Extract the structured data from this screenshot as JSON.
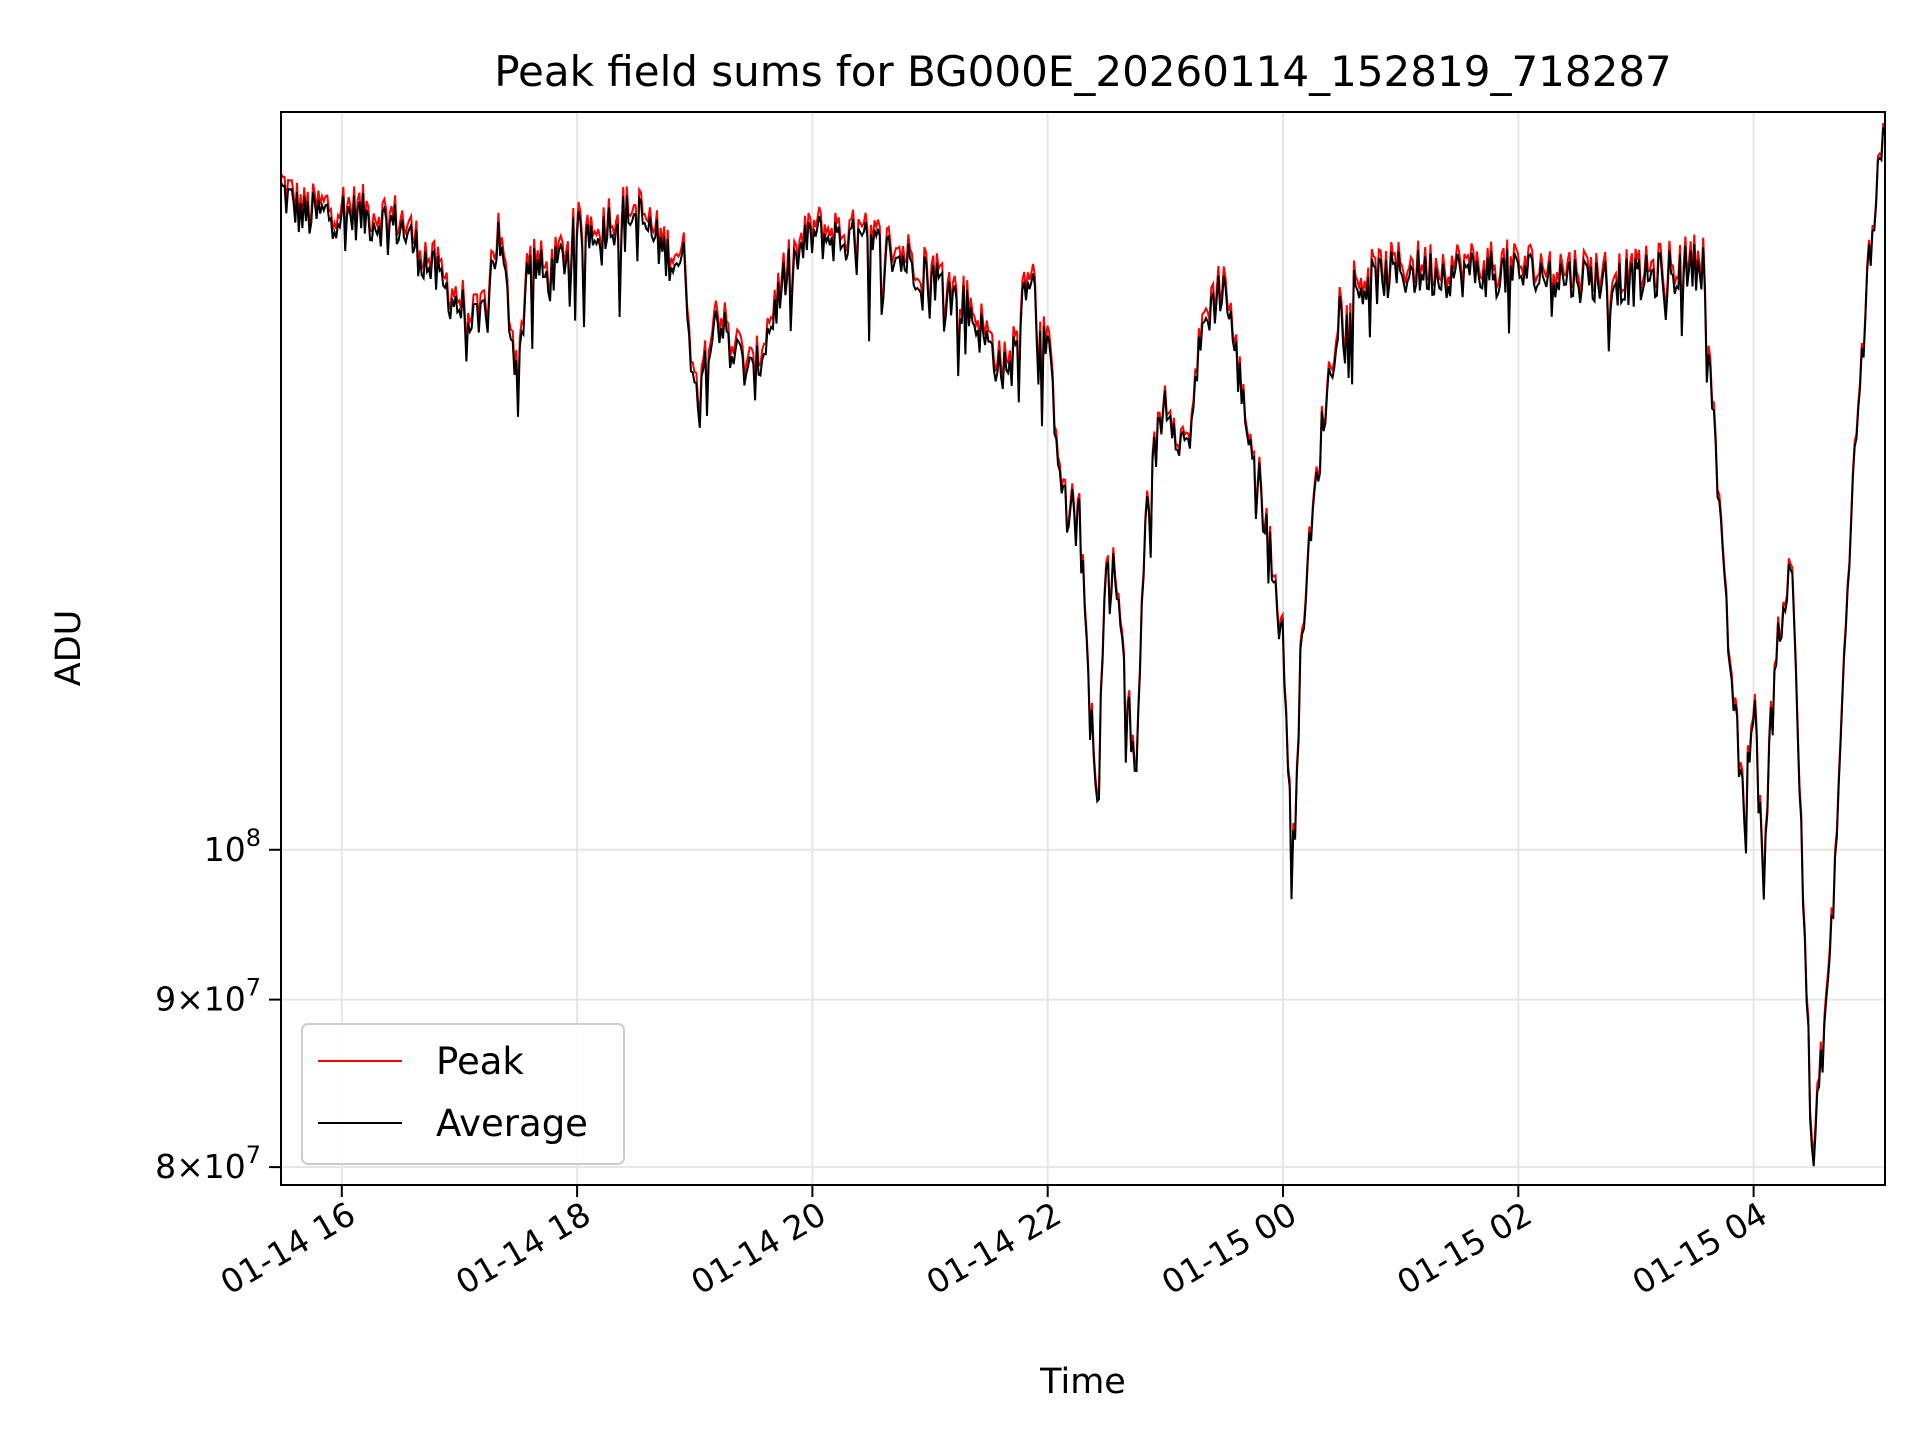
{
  "chart_data": {
    "type": "line",
    "title": "Peak field sums for BG000E_20260114_152819_718287",
    "xlabel": "Time",
    "ylabel": "ADU",
    "yscale": "log",
    "grid": true,
    "legend_placement": "lower-left",
    "xlim": [
      "2026-01-14 15:29",
      "2026-01-15 05:07"
    ],
    "ylim": [
      79000000,
      168000000
    ],
    "x_ticks": [
      {
        "value": "2026-01-14 16:00",
        "label": "01-14 16"
      },
      {
        "value": "2026-01-14 18:00",
        "label": "01-14 18"
      },
      {
        "value": "2026-01-14 20:00",
        "label": "01-14 20"
      },
      {
        "value": "2026-01-14 22:00",
        "label": "01-14 22"
      },
      {
        "value": "2026-01-15 00:00",
        "label": "01-15 00"
      },
      {
        "value": "2026-01-15 02:00",
        "label": "01-15 02"
      },
      {
        "value": "2026-01-15 04:00",
        "label": "01-15 04"
      }
    ],
    "y_ticks": [
      {
        "value": 80000000,
        "base": "8",
        "mult": "×",
        "mantissa": "10",
        "exp": "7"
      },
      {
        "value": 90000000,
        "base": "9",
        "mult": "×",
        "mantissa": "10",
        "exp": "7"
      },
      {
        "value": 100000000,
        "base": "",
        "mult": "",
        "mantissa": "10",
        "exp": "8"
      }
    ],
    "series": [
      {
        "name": "Peak",
        "color": "#ff0000",
        "x": [
          "2026-01-14 15:29",
          "2026-01-14 15:40",
          "2026-01-14 16:00",
          "2026-01-14 16:30",
          "2026-01-14 16:50",
          "2026-01-14 17:10",
          "2026-01-14 17:20",
          "2026-01-14 17:30",
          "2026-01-14 17:35",
          "2026-01-14 17:45",
          "2026-01-14 18:00",
          "2026-01-14 18:30",
          "2026-01-14 18:45",
          "2026-01-14 18:55",
          "2026-01-14 19:00",
          "2026-01-14 19:10",
          "2026-01-14 19:20",
          "2026-01-14 19:30",
          "2026-01-14 19:45",
          "2026-01-14 20:00",
          "2026-01-14 20:30",
          "2026-01-14 21:00",
          "2026-01-14 21:20",
          "2026-01-14 21:40",
          "2026-01-14 21:50",
          "2026-01-14 22:00",
          "2026-01-14 22:10",
          "2026-01-14 22:15",
          "2026-01-14 22:25",
          "2026-01-14 22:30",
          "2026-01-14 22:35",
          "2026-01-14 22:45",
          "2026-01-14 22:50",
          "2026-01-14 23:00",
          "2026-01-14 23:10",
          "2026-01-14 23:20",
          "2026-01-14 23:30",
          "2026-01-14 23:40",
          "2026-01-14 23:50",
          "2026-01-15 00:00",
          "2026-01-15 00:05",
          "2026-01-15 00:10",
          "2026-01-15 00:20",
          "2026-01-15 00:30",
          "2026-01-15 01:00",
          "2026-01-15 02:00",
          "2026-01-15 03:00",
          "2026-01-15 03:35",
          "2026-01-15 03:45",
          "2026-01-15 03:55",
          "2026-01-15 04:00",
          "2026-01-15 04:05",
          "2026-01-15 04:10",
          "2026-01-15 04:20",
          "2026-01-15 04:30",
          "2026-01-15 04:40",
          "2026-01-15 04:50",
          "2026-01-15 05:00",
          "2026-01-15 05:07"
        ],
        "values": [
          160000000,
          157000000,
          157500000,
          156000000,
          150000000,
          145000000,
          155000000,
          140000000,
          153000000,
          150000000,
          155000000,
          157500000,
          153000000,
          152000000,
          138000000,
          147000000,
          143000000,
          140000000,
          150000000,
          155000000,
          154000000,
          151000000,
          147000000,
          140000000,
          152000000,
          143000000,
          126000000,
          130000000,
          103000000,
          124000000,
          121000000,
          105000000,
          128000000,
          138000000,
          133000000,
          146000000,
          150000000,
          137000000,
          128000000,
          116000000,
          100000000,
          118000000,
          135000000,
          149000000,
          151000000,
          151000000,
          150000000,
          152000000,
          120000000,
          103000000,
          112000000,
          98000000,
          115000000,
          123000000,
          80000000,
          95000000,
          128000000,
          155000000,
          166000000
        ]
      },
      {
        "name": "Average",
        "color": "#000000",
        "x": [
          "2026-01-14 15:29",
          "2026-01-14 15:40",
          "2026-01-14 16:00",
          "2026-01-14 16:30",
          "2026-01-14 16:50",
          "2026-01-14 17:10",
          "2026-01-14 17:20",
          "2026-01-14 17:30",
          "2026-01-14 17:35",
          "2026-01-14 17:45",
          "2026-01-14 18:00",
          "2026-01-14 18:30",
          "2026-01-14 18:45",
          "2026-01-14 18:55",
          "2026-01-14 19:00",
          "2026-01-14 19:10",
          "2026-01-14 19:20",
          "2026-01-14 19:30",
          "2026-01-14 19:45",
          "2026-01-14 20:00",
          "2026-01-14 20:30",
          "2026-01-14 21:00",
          "2026-01-14 21:20",
          "2026-01-14 21:40",
          "2026-01-14 21:50",
          "2026-01-14 22:00",
          "2026-01-14 22:10",
          "2026-01-14 22:15",
          "2026-01-14 22:25",
          "2026-01-14 22:30",
          "2026-01-14 22:35",
          "2026-01-14 22:45",
          "2026-01-14 22:50",
          "2026-01-14 23:00",
          "2026-01-14 23:10",
          "2026-01-14 23:20",
          "2026-01-14 23:30",
          "2026-01-14 23:40",
          "2026-01-14 23:50",
          "2026-01-15 00:00",
          "2026-01-15 00:05",
          "2026-01-15 00:10",
          "2026-01-15 00:20",
          "2026-01-15 00:30",
          "2026-01-15 01:00",
          "2026-01-15 02:00",
          "2026-01-15 03:00",
          "2026-01-15 03:35",
          "2026-01-15 03:45",
          "2026-01-15 03:55",
          "2026-01-15 04:00",
          "2026-01-15 04:05",
          "2026-01-15 04:10",
          "2026-01-15 04:20",
          "2026-01-15 04:30",
          "2026-01-15 04:40",
          "2026-01-15 04:50",
          "2026-01-15 05:00",
          "2026-01-15 05:07"
        ],
        "values": [
          159000000,
          156000000,
          156500000,
          155000000,
          149000000,
          144000000,
          154000000,
          139000000,
          152000000,
          149000000,
          154000000,
          156500000,
          152000000,
          151000000,
          137000000,
          146000000,
          142000000,
          139000000,
          149000000,
          154000000,
          153000000,
          150000000,
          146000000,
          139000000,
          151000000,
          142000000,
          125500000,
          129500000,
          102500000,
          123500000,
          120500000,
          104500000,
          127500000,
          137500000,
          132500000,
          145000000,
          149000000,
          136500000,
          127500000,
          115500000,
          99500000,
          117500000,
          134500000,
          148000000,
          150000000,
          150000000,
          149000000,
          151000000,
          119500000,
          102500000,
          111500000,
          97500000,
          114500000,
          122500000,
          79500000,
          94500000,
          127500000,
          154500000,
          165500000
        ]
      }
    ]
  }
}
